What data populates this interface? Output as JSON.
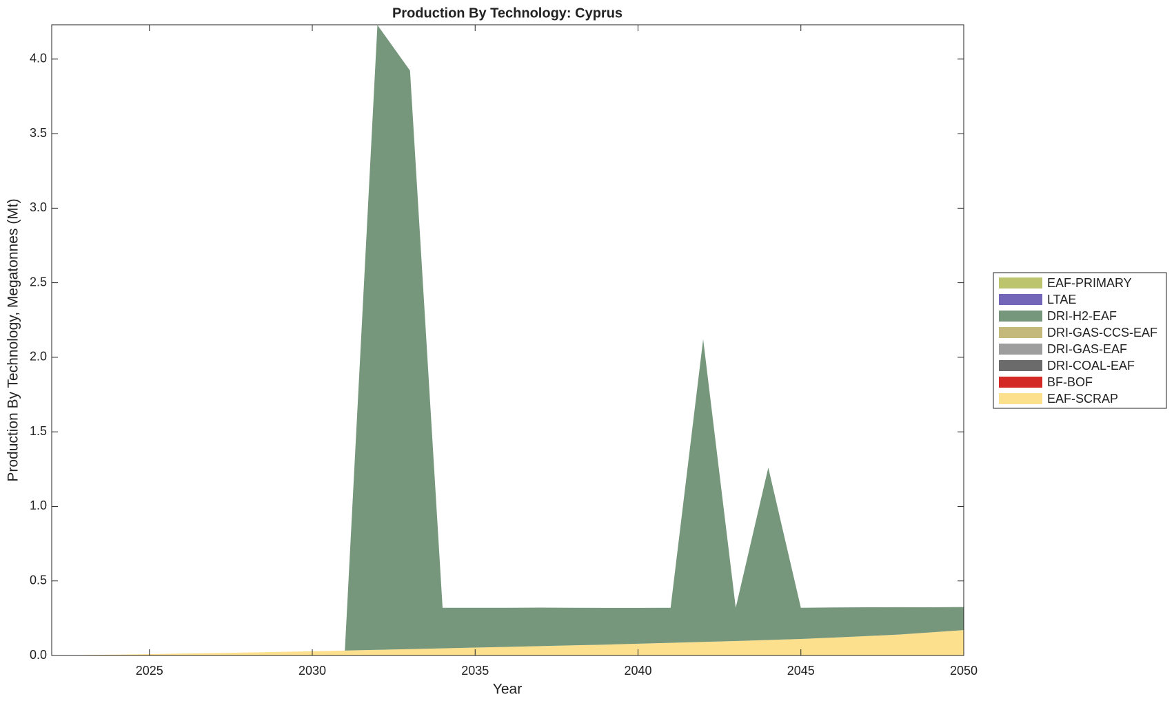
{
  "chart_data": {
    "type": "stacked-area",
    "title": "Production By Technology: Cyprus",
    "xlabel": "Year",
    "ylabel": "Production By Technology, Megatonnes (Mt)",
    "x": [
      2022,
      2023,
      2024,
      2025,
      2026,
      2027,
      2028,
      2029,
      2030,
      2031,
      2032,
      2033,
      2034,
      2035,
      2036,
      2037,
      2038,
      2039,
      2040,
      2041,
      2042,
      2043,
      2044,
      2045,
      2046,
      2047,
      2048,
      2049,
      2050
    ],
    "xlim": [
      2022,
      2050
    ],
    "xticks": [
      2025,
      2030,
      2035,
      2040,
      2045,
      2050
    ],
    "ylim": [
      0,
      4.23
    ],
    "yticks": [
      {
        "value": 0,
        "label": "0.0"
      },
      0.5,
      {
        "value": 1,
        "label": "1.0"
      },
      1.5,
      {
        "value": 2,
        "label": "2.0"
      },
      2.5,
      {
        "value": 3,
        "label": "3.0"
      },
      3.5,
      {
        "value": 4,
        "label": "4.0"
      }
    ],
    "legend": "outside-right",
    "series": [
      {
        "name": "EAF-SCRAP",
        "color": "#fde08e",
        "values": [
          0,
          0.003,
          0.006,
          0.009,
          0.013,
          0.016,
          0.02,
          0.024,
          0.028,
          0.033,
          0.038,
          0.043,
          0.048,
          0.053,
          0.058,
          0.063,
          0.068,
          0.073,
          0.079,
          0.085,
          0.091,
          0.097,
          0.104,
          0.111,
          0.12,
          0.13,
          0.14,
          0.155,
          0.17
        ]
      },
      {
        "name": "BF-BOF",
        "color": "#d42a26",
        "values": [
          0,
          0,
          0,
          0,
          0,
          0,
          0,
          0,
          0,
          0,
          0,
          0,
          0,
          0,
          0,
          0,
          0,
          0,
          0,
          0,
          0,
          0,
          0,
          0,
          0,
          0,
          0,
          0,
          0
        ]
      },
      {
        "name": "DRI-COAL-EAF",
        "color": "#6b6b6b",
        "values": [
          0,
          0,
          0,
          0,
          0,
          0,
          0,
          0,
          0,
          0,
          0,
          0,
          0,
          0,
          0,
          0,
          0,
          0,
          0,
          0,
          0,
          0,
          0,
          0,
          0,
          0,
          0,
          0,
          0
        ]
      },
      {
        "name": "DRI-GAS-EAF",
        "color": "#9e9e9e",
        "values": [
          0,
          0,
          0,
          0,
          0,
          0,
          0,
          0,
          0,
          0,
          0,
          0,
          0,
          0,
          0,
          0,
          0,
          0,
          0,
          0,
          0,
          0,
          0,
          0,
          0,
          0,
          0,
          0,
          0
        ]
      },
      {
        "name": "DRI-GAS-CCS-EAF",
        "color": "#c4b87a",
        "values": [
          0,
          0,
          0,
          0,
          0,
          0,
          0,
          0,
          0,
          0,
          0,
          0,
          0,
          0,
          0,
          0,
          0,
          0,
          0,
          0,
          0,
          0,
          0,
          0,
          0,
          0,
          0,
          0,
          0
        ]
      },
      {
        "name": "DRI-H2-EAF",
        "color": "#76977c",
        "values": [
          0,
          0,
          0,
          0,
          0,
          0,
          0,
          0,
          0,
          0,
          4.19,
          3.88,
          0.272,
          0.267,
          0.262,
          0.258,
          0.252,
          0.246,
          0.24,
          0.235,
          2.03,
          0.223,
          1.156,
          0.209,
          0.202,
          0.193,
          0.184,
          0.168,
          0.155
        ]
      },
      {
        "name": "LTAE",
        "color": "#7366b8",
        "values": [
          0,
          0,
          0,
          0,
          0,
          0,
          0,
          0,
          0,
          0,
          0,
          0,
          0,
          0,
          0,
          0,
          0,
          0,
          0,
          0,
          0,
          0,
          0,
          0,
          0,
          0,
          0,
          0,
          0
        ]
      },
      {
        "name": "EAF-PRIMARY",
        "color": "#bcc46e",
        "values": [
          0,
          0,
          0,
          0,
          0,
          0,
          0,
          0,
          0,
          0,
          0,
          0,
          0,
          0,
          0,
          0,
          0,
          0,
          0,
          0,
          0,
          0,
          0,
          0,
          0,
          0,
          0,
          0,
          0
        ]
      }
    ]
  }
}
